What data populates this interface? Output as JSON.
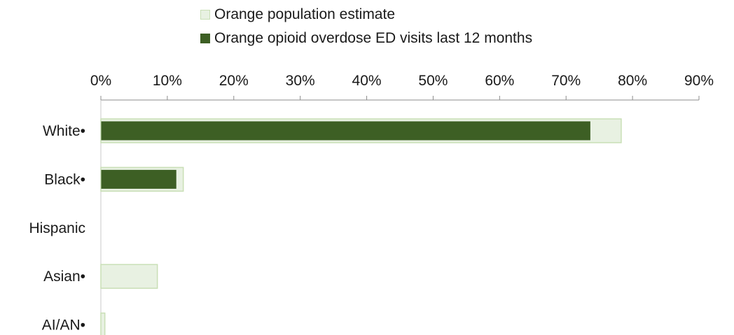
{
  "chart_data": {
    "type": "bar",
    "orientation": "horizontal",
    "categories": [
      "White•",
      "Black•",
      "Hispanic",
      "Asian•",
      "AI/AN•"
    ],
    "series": [
      {
        "name": "Orange population estimate",
        "values": [
          78.3,
          12.4,
          0,
          8.5,
          0.6
        ],
        "fill": "#e8f1e2",
        "stroke": "#c9dfb6"
      },
      {
        "name": "Orange opioid overdose ED visits last 12 months",
        "values": [
          73.6,
          11.3,
          0,
          0,
          0
        ],
        "fill": "#3d5f24",
        "stroke": "#3d5f24"
      }
    ],
    "xlim": [
      0,
      90
    ],
    "xticks": [
      "0%",
      "10%",
      "20%",
      "30%",
      "40%",
      "50%",
      "60%",
      "70%",
      "80%",
      "90%"
    ],
    "axis_position": "top",
    "legend_position": "top",
    "grid": false
  }
}
